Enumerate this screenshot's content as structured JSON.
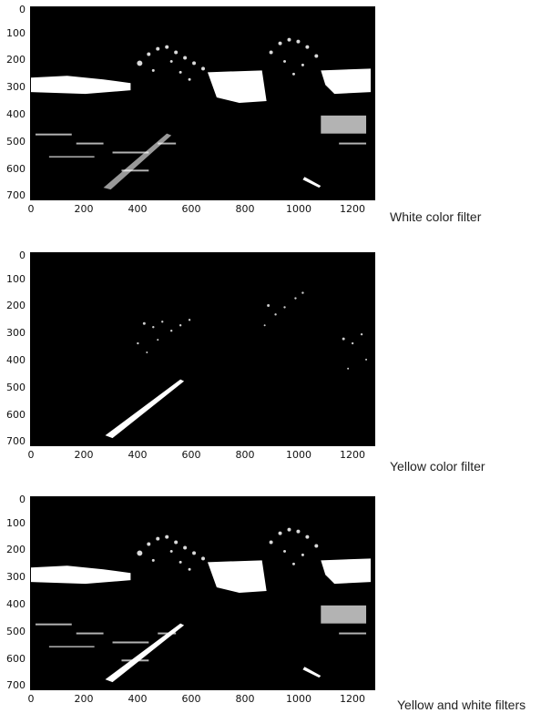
{
  "figures": [
    {
      "id": "white",
      "caption": "White color filter",
      "yticks": [
        "0",
        "100",
        "200",
        "300",
        "400",
        "500",
        "600",
        "700"
      ],
      "xticks": [
        "0",
        "200",
        "400",
        "600",
        "800",
        "1000",
        "1200"
      ]
    },
    {
      "id": "yellow",
      "caption": "Yellow color filter",
      "yticks": [
        "0",
        "100",
        "200",
        "300",
        "400",
        "500",
        "600",
        "700"
      ],
      "xticks": [
        "0",
        "200",
        "400",
        "600",
        "800",
        "1000",
        "1200"
      ]
    },
    {
      "id": "combined",
      "caption": "Yellow and white filters",
      "yticks": [
        "0",
        "100",
        "200",
        "300",
        "400",
        "500",
        "600",
        "700"
      ],
      "xticks": [
        "0",
        "200",
        "400",
        "600",
        "800",
        "1000",
        "1200"
      ]
    }
  ],
  "colors": {
    "background": "#000000",
    "mask": "#ffffff"
  }
}
